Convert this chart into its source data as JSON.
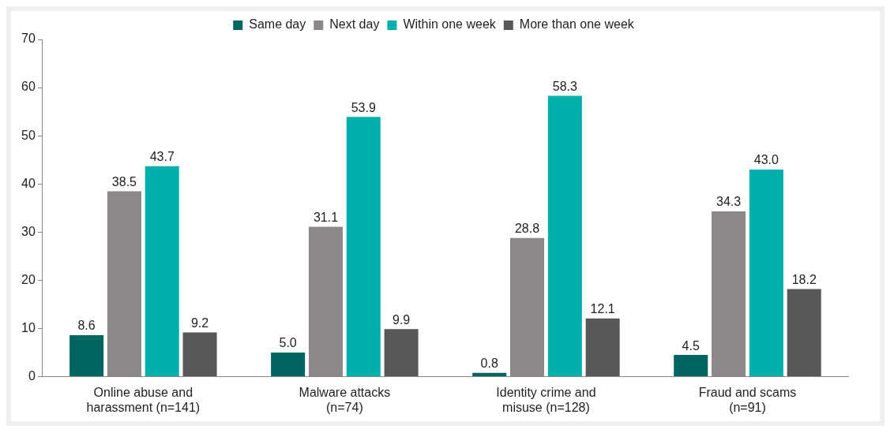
{
  "chart_data": {
    "type": "bar",
    "categories": [
      "Online abuse and harassment (n=141)",
      "Malware attacks (n=74)",
      "Identity crime and misuse (n=128)",
      "Fraud and scams (n=91)"
    ],
    "series": [
      {
        "name": "Same day",
        "color": "#006461",
        "values": [
          8.6,
          5.0,
          0.8,
          4.5
        ],
        "value_labels": [
          "8.6",
          "5.0",
          "0.8",
          "4.5"
        ]
      },
      {
        "name": "Next day",
        "color": "#8c8888",
        "values": [
          38.5,
          31.1,
          28.8,
          34.3
        ],
        "value_labels": [
          "38.5",
          "31.1",
          "28.8",
          "34.3"
        ]
      },
      {
        "name": "Within one week",
        "color": "#00b0aa",
        "values": [
          43.7,
          53.9,
          58.3,
          43.0
        ],
        "value_labels": [
          "43.7",
          "53.9",
          "58.3",
          "43.0"
        ]
      },
      {
        "name": "More than one week",
        "color": "#58585a",
        "values": [
          9.2,
          9.9,
          12.1,
          18.2
        ],
        "value_labels": [
          "9.2",
          "9.9",
          "12.1",
          "18.2"
        ]
      }
    ],
    "ylim": [
      0,
      70
    ],
    "yticks": [
      0,
      10,
      20,
      30,
      40,
      50,
      60,
      70
    ],
    "grid": false,
    "legend": "top"
  }
}
